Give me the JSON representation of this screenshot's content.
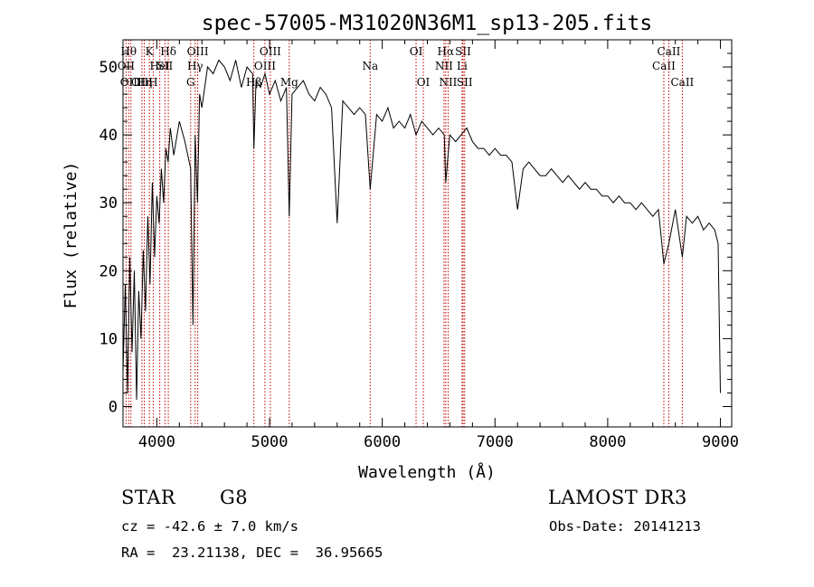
{
  "chart_data": {
    "type": "line",
    "title": "spec-57005-M31020N36M1_sp13-205.fits",
    "xlabel": "Wavelength (Å)",
    "ylabel": "Flux (relative)",
    "xlim": [
      3700,
      9100
    ],
    "ylim": [
      -3,
      54
    ],
    "xticks": [
      4000,
      5000,
      6000,
      7000,
      8000,
      9000
    ],
    "yticks": [
      0,
      10,
      20,
      30,
      40,
      50
    ],
    "line_color": "#000000",
    "marker_color": "#c00000",
    "series": [
      {
        "x": [
          3700,
          3720,
          3740,
          3760,
          3780,
          3800,
          3820,
          3840,
          3860,
          3880,
          3900,
          3920,
          3940,
          3960,
          3980,
          4000,
          4020,
          4040,
          4060,
          4080,
          4100,
          4120,
          4150,
          4200,
          4250,
          4300,
          4320,
          4340,
          4360,
          4380,
          4400,
          4450,
          4500,
          4550,
          4600,
          4650,
          4700,
          4750,
          4800,
          4850,
          4861,
          4880,
          4920,
          4960,
          5000,
          5050,
          5100,
          5150,
          5175,
          5200,
          5250,
          5300,
          5350,
          5400,
          5450,
          5500,
          5550,
          5600,
          5650,
          5700,
          5750,
          5800,
          5850,
          5893,
          5950,
          6000,
          6050,
          6100,
          6150,
          6200,
          6250,
          6300,
          6350,
          6400,
          6450,
          6500,
          6550,
          6563,
          6600,
          6650,
          6700,
          6750,
          6800,
          6850,
          6900,
          6950,
          7000,
          7050,
          7100,
          7150,
          7200,
          7250,
          7300,
          7350,
          7400,
          7450,
          7500,
          7550,
          7600,
          7650,
          7700,
          7750,
          7800,
          7850,
          7900,
          7950,
          8000,
          8050,
          8100,
          8150,
          8200,
          8250,
          8300,
          8350,
          8400,
          8450,
          8498,
          8542,
          8600,
          8662,
          8700,
          8750,
          8800,
          8850,
          8900,
          8950,
          8980,
          9000
        ],
        "y": [
          5,
          18,
          2,
          22,
          8,
          20,
          1,
          17,
          10,
          23,
          14,
          28,
          18,
          33,
          22,
          31,
          27,
          35,
          30,
          38,
          36,
          41,
          37,
          42,
          39,
          35,
          12,
          40,
          30,
          46,
          44,
          50,
          49,
          51,
          50,
          48,
          51,
          47,
          50,
          49,
          38,
          48,
          47,
          49,
          46,
          48,
          45,
          47,
          28,
          46,
          47,
          48,
          46,
          45,
          47,
          46,
          44,
          27,
          45,
          44,
          43,
          44,
          43,
          32,
          43,
          42,
          44,
          41,
          42,
          41,
          43,
          40,
          42,
          41,
          40,
          41,
          40,
          33,
          40,
          39,
          40,
          41,
          39,
          38,
          38,
          37,
          38,
          37,
          37,
          36,
          29,
          35,
          36,
          35,
          34,
          34,
          35,
          34,
          33,
          34,
          33,
          32,
          33,
          32,
          32,
          31,
          31,
          30,
          31,
          30,
          30,
          29,
          30,
          29,
          28,
          29,
          21,
          24,
          29,
          22,
          28,
          27,
          28,
          26,
          27,
          26,
          24,
          2
        ]
      }
    ],
    "line_markers": [
      {
        "x": 3750,
        "label": "Hθ",
        "row": 0
      },
      {
        "x": 3727,
        "label": "OII",
        "row": 1
      },
      {
        "x": 3770,
        "label": "OIII",
        "row": 2
      },
      {
        "x": 3868,
        "label": "OIII",
        "row": 2
      },
      {
        "x": 3889,
        "label": "Hη",
        "row": 2
      },
      {
        "x": 3934,
        "label": "K",
        "row": 0
      },
      {
        "x": 3968,
        "label": "H",
        "row": 2
      },
      {
        "x": 4026,
        "label": "HeI",
        "row": 1
      },
      {
        "x": 4072,
        "label": "SII",
        "row": 1
      },
      {
        "x": 4102,
        "label": "Hδ",
        "row": 0
      },
      {
        "x": 4300,
        "label": "G",
        "row": 2
      },
      {
        "x": 4340,
        "label": "Hγ",
        "row": 1
      },
      {
        "x": 4363,
        "label": "OIII",
        "row": 0
      },
      {
        "x": 4861,
        "label": "Hβ",
        "row": 2
      },
      {
        "x": 4959,
        "label": "OIII",
        "row": 1
      },
      {
        "x": 5007,
        "label": "OIII",
        "row": 0
      },
      {
        "x": 5175,
        "label": "Mg",
        "row": 2
      },
      {
        "x": 5893,
        "label": "Na",
        "row": 1
      },
      {
        "x": 6300,
        "label": "OI",
        "row": 0
      },
      {
        "x": 6364,
        "label": "OI",
        "row": 2
      },
      {
        "x": 6548,
        "label": "NII",
        "row": 1
      },
      {
        "x": 6563,
        "label": "Hα",
        "row": 0
      },
      {
        "x": 6584,
        "label": "NII",
        "row": 2
      },
      {
        "x": 6708,
        "label": "Li",
        "row": 1
      },
      {
        "x": 6717,
        "label": "SII",
        "row": 0
      },
      {
        "x": 6731,
        "label": "SII",
        "row": 2
      },
      {
        "x": 8498,
        "label": "CaII",
        "row": 1
      },
      {
        "x": 8542,
        "label": "CaII",
        "row": 0
      },
      {
        "x": 8662,
        "label": "CaII",
        "row": 2
      }
    ]
  },
  "info": {
    "object_class": "STAR",
    "subclass": "G8",
    "survey": "LAMOST DR3",
    "cz": "cz = -42.6 ± 7.0 km/s",
    "obs_date": "Obs-Date: 20141213",
    "coords": "RA =  23.21138, DEC =  36.95665"
  }
}
